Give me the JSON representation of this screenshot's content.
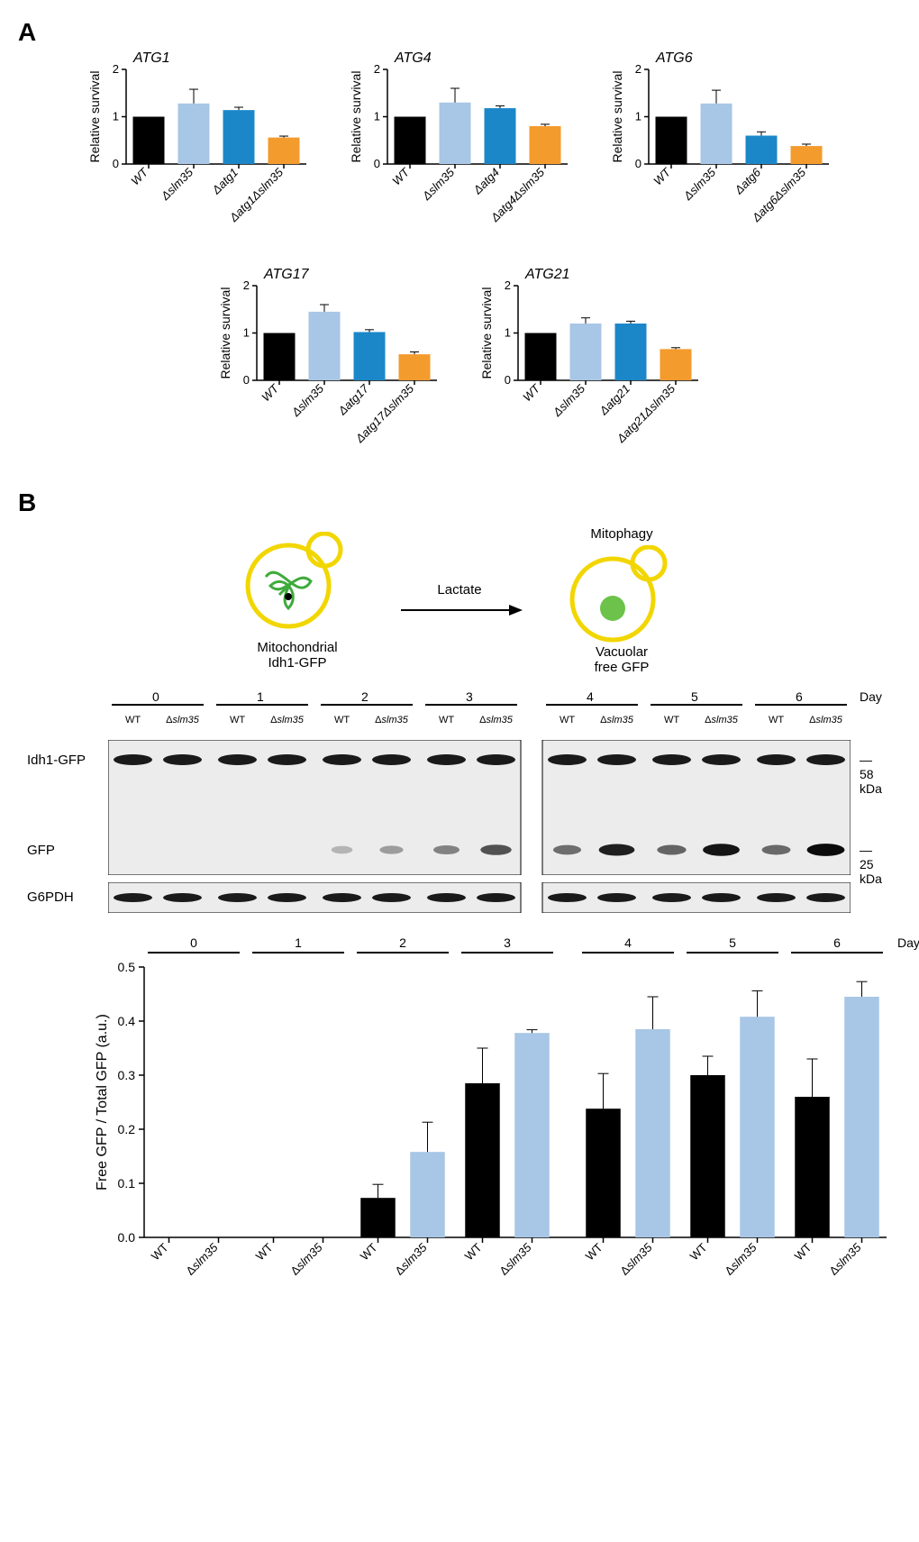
{
  "colors": {
    "wt": "#000000",
    "dslm35": "#a8c6e5",
    "datg": "#1b87c9",
    "double": "#f39b2d",
    "axis": "#000000",
    "bg": "#ffffff"
  },
  "panelA": {
    "label": "A",
    "ylabel": "Relative survival",
    "ylim": [
      0,
      2
    ],
    "yticks": [
      0,
      1,
      2
    ],
    "charts": [
      {
        "title": "ATG1",
        "bars": [
          {
            "label": "WT",
            "value": 1.0,
            "err": 0,
            "color": "wt"
          },
          {
            "label": "Δslm35",
            "value": 1.28,
            "err": 0.3,
            "color": "dslm35"
          },
          {
            "label": "Δatg1",
            "value": 1.14,
            "err": 0.06,
            "color": "datg"
          },
          {
            "label": "Δatg1Δslm35",
            "value": 0.56,
            "err": 0.03,
            "color": "double"
          }
        ]
      },
      {
        "title": "ATG4",
        "bars": [
          {
            "label": "WT",
            "value": 1.0,
            "err": 0,
            "color": "wt"
          },
          {
            "label": "Δslm35",
            "value": 1.3,
            "err": 0.3,
            "color": "dslm35"
          },
          {
            "label": "Δatg4",
            "value": 1.18,
            "err": 0.05,
            "color": "datg"
          },
          {
            "label": "Δatg4Δslm35",
            "value": 0.8,
            "err": 0.04,
            "color": "double"
          }
        ]
      },
      {
        "title": "ATG6",
        "bars": [
          {
            "label": "WT",
            "value": 1.0,
            "err": 0,
            "color": "wt"
          },
          {
            "label": "Δslm35",
            "value": 1.28,
            "err": 0.28,
            "color": "dslm35"
          },
          {
            "label": "Δatg6",
            "value": 0.6,
            "err": 0.08,
            "color": "datg"
          },
          {
            "label": "Δatg6Δslm35",
            "value": 0.38,
            "err": 0.04,
            "color": "double"
          }
        ]
      },
      {
        "title": "ATG17",
        "bars": [
          {
            "label": "WT",
            "value": 1.0,
            "err": 0,
            "color": "wt"
          },
          {
            "label": "Δslm35",
            "value": 1.45,
            "err": 0.15,
            "color": "dslm35"
          },
          {
            "label": "Δatg17",
            "value": 1.02,
            "err": 0.05,
            "color": "datg"
          },
          {
            "label": "Δatg17Δslm35",
            "value": 0.55,
            "err": 0.05,
            "color": "double"
          }
        ]
      },
      {
        "title": "ATG21",
        "bars": [
          {
            "label": "WT",
            "value": 1.0,
            "err": 0,
            "color": "wt"
          },
          {
            "label": "Δslm35",
            "value": 1.2,
            "err": 0.12,
            "color": "dslm35"
          },
          {
            "label": "Δatg21",
            "value": 1.2,
            "err": 0.05,
            "color": "datg"
          },
          {
            "label": "Δatg21Δslm35",
            "value": 0.66,
            "err": 0.03,
            "color": "double"
          }
        ]
      }
    ]
  },
  "panelB": {
    "label": "B",
    "schematic": {
      "left_label_top": "Mitochondrial",
      "left_label_bottom": "Idh1-GFP",
      "arrow_label": "Lactate",
      "right_title": "Mitophagy",
      "right_label_top": "Vacuolar",
      "right_label_bottom": "free GFP",
      "cell_outline": "#f2d600",
      "mito_color": "#3faa3c",
      "gfp_fill": "#6cc24a"
    },
    "blot": {
      "days": [
        0,
        1,
        2,
        3,
        4,
        5,
        6
      ],
      "lanes_per_day": [
        "WT",
        "Δslm35"
      ],
      "row_labels": [
        "Idh1-GFP",
        "GFP",
        "G6PDH"
      ],
      "size_markers": [
        "58 kDa",
        "25 kDa"
      ],
      "day_text": "Day",
      "split_after_day": 3,
      "gfp_intensity": {
        "0": {
          "WT": 0,
          "dslm35": 0
        },
        "1": {
          "WT": 0,
          "dslm35": 0
        },
        "2": {
          "WT": 0.1,
          "dslm35": 0.22
        },
        "3": {
          "WT": 0.35,
          "dslm35": 0.6
        },
        "4": {
          "WT": 0.45,
          "dslm35": 0.85
        },
        "5": {
          "WT": 0.5,
          "dslm35": 0.9
        },
        "6": {
          "WT": 0.48,
          "dslm35": 0.95
        }
      }
    },
    "quant_chart": {
      "ylabel": "Free GFP / Total GFP (a.u.)",
      "ylim": [
        0,
        0.5
      ],
      "yticks": [
        0.0,
        0.1,
        0.2,
        0.3,
        0.4,
        0.5
      ],
      "days": [
        0,
        1,
        2,
        3,
        4,
        5,
        6
      ],
      "day_text": "Day",
      "series": {
        "WT": {
          "color": "wt",
          "values": [
            0.0,
            0.0,
            0.073,
            0.285,
            0.238,
            0.3,
            0.26
          ],
          "err": [
            0,
            0,
            0.025,
            0.065,
            0.065,
            0.035,
            0.07
          ]
        },
        "Δslm35": {
          "color": "dslm35",
          "values": [
            0.0,
            0.0,
            0.158,
            0.378,
            0.385,
            0.408,
            0.445
          ],
          "err": [
            0,
            0,
            0.055,
            0.006,
            0.06,
            0.048,
            0.028
          ]
        }
      },
      "xlabels_per_group": [
        "WT",
        "Δslm35"
      ]
    }
  }
}
